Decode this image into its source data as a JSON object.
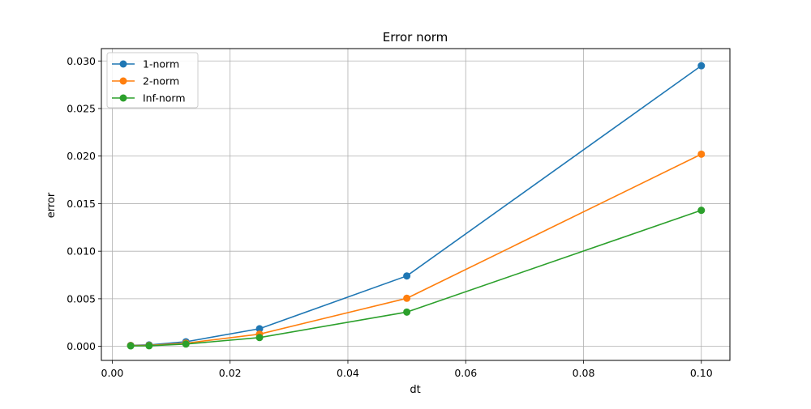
{
  "chart_data": {
    "type": "line",
    "title": "Error norm",
    "xlabel": "dt",
    "ylabel": "error",
    "xlim": [
      -0.00185,
      0.10485
    ],
    "ylim": [
      -0.00148,
      0.0313
    ],
    "xticks": [
      0.0,
      0.02,
      0.04,
      0.06,
      0.08,
      0.1
    ],
    "xtick_labels": [
      "0.00",
      "0.02",
      "0.04",
      "0.06",
      "0.08",
      "0.10"
    ],
    "yticks": [
      0.0,
      0.005,
      0.01,
      0.015,
      0.02,
      0.025,
      0.03
    ],
    "ytick_labels": [
      "0.000",
      "0.005",
      "0.010",
      "0.015",
      "0.020",
      "0.025",
      "0.030"
    ],
    "grid": true,
    "legend_position": "upper-left",
    "x": [
      0.003125,
      0.00625,
      0.0125,
      0.025,
      0.05,
      0.1
    ],
    "series": [
      {
        "name": "1-norm",
        "color": "#1f77b4",
        "values": [
          0.0001,
          0.00015,
          0.00048,
          0.00185,
          0.0074,
          0.0295
        ]
      },
      {
        "name": "2-norm",
        "color": "#ff7f0e",
        "values": [
          8e-05,
          0.0001,
          0.00033,
          0.00128,
          0.00505,
          0.0202
        ]
      },
      {
        "name": "Inf-norm",
        "color": "#2ca02c",
        "values": [
          5e-05,
          6e-05,
          0.00024,
          0.00092,
          0.0036,
          0.0143
        ]
      }
    ],
    "grid_color": "#b0b0b0"
  }
}
